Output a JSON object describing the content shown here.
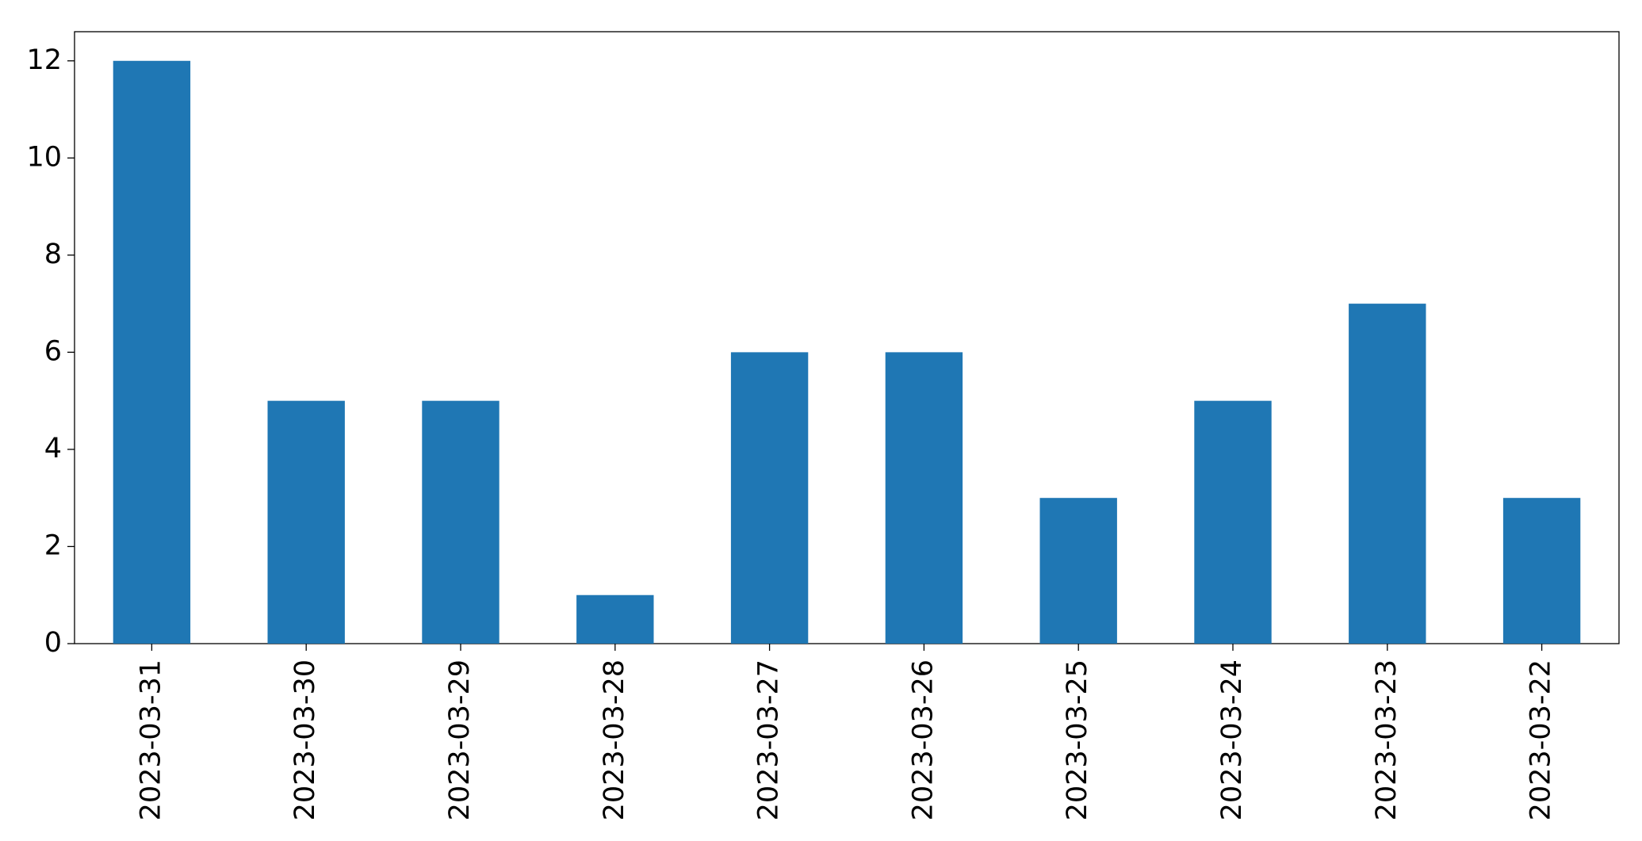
{
  "chart_data": {
    "type": "bar",
    "categories": [
      "2023-03-31",
      "2023-03-30",
      "2023-03-29",
      "2023-03-28",
      "2023-03-27",
      "2023-03-26",
      "2023-03-25",
      "2023-03-24",
      "2023-03-23",
      "2023-03-22"
    ],
    "values": [
      12,
      5,
      5,
      1,
      6,
      6,
      3,
      5,
      7,
      3
    ],
    "color": "#1f77b4",
    "ylim": [
      0,
      12.6
    ],
    "yticks": [
      0,
      2,
      4,
      6,
      8,
      10,
      12
    ],
    "grid": false
  }
}
